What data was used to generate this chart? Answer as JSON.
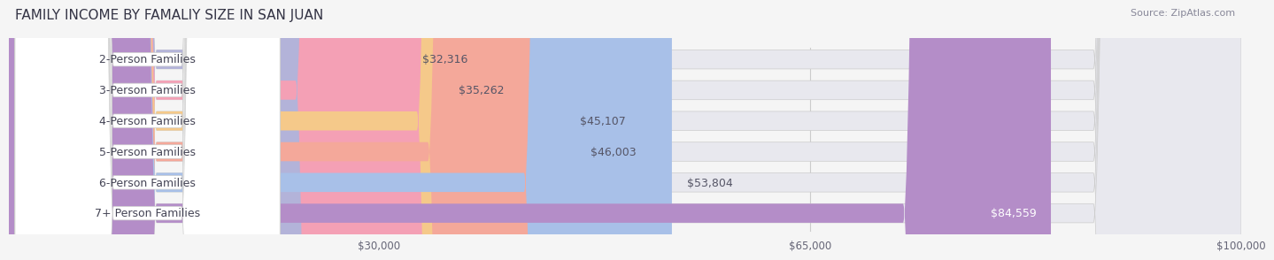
{
  "title": "FAMILY INCOME BY FAMALIY SIZE IN SAN JUAN",
  "source": "Source: ZipAtlas.com",
  "categories": [
    "2-Person Families",
    "3-Person Families",
    "4-Person Families",
    "5-Person Families",
    "6-Person Families",
    "7+ Person Families"
  ],
  "values": [
    32316,
    35262,
    45107,
    46003,
    53804,
    84559
  ],
  "bar_colors": [
    "#b3b3d9",
    "#f4a0b5",
    "#f5c98a",
    "#f4a89a",
    "#a8c0e8",
    "#b48dc8"
  ],
  "label_colors": [
    "#555566",
    "#555566",
    "#555566",
    "#555566",
    "#555566",
    "#ffffff"
  ],
  "value_labels": [
    "$32,316",
    "$35,262",
    "$45,107",
    "$46,003",
    "$53,804",
    "$84,559"
  ],
  "xmax": 100000,
  "xticks": [
    0,
    30000,
    65000,
    100000
  ],
  "xtick_labels": [
    "",
    "$30,000",
    "$65,000",
    "$100,000"
  ],
  "bar_height": 0.62,
  "background_color": "#f5f5f5",
  "bar_bg_color": "#e8e8ee",
  "title_fontsize": 11,
  "label_fontsize": 9,
  "value_fontsize": 9,
  "source_fontsize": 8
}
